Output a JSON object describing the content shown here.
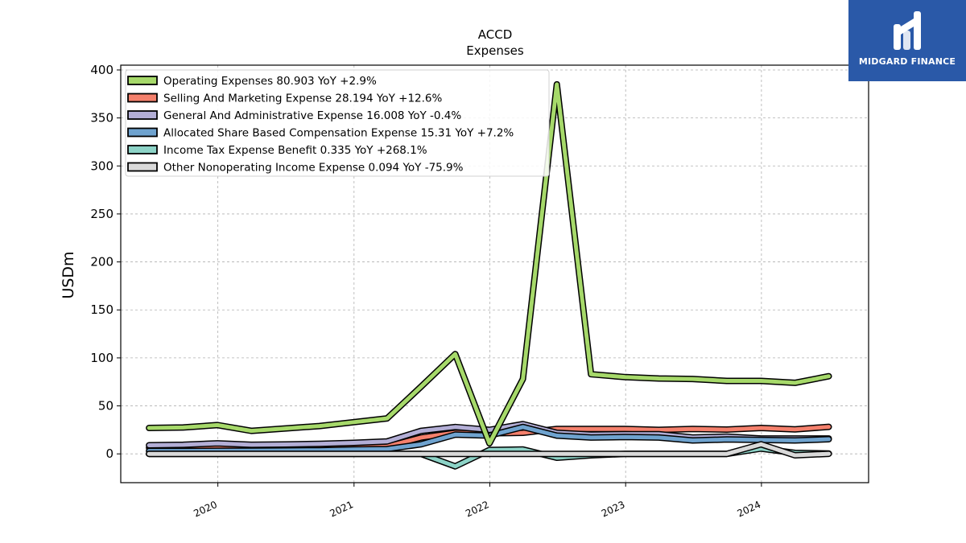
{
  "brand": {
    "name": "MIDGARD FINANCE",
    "bg_color": "#2a59a8"
  },
  "chart_data": {
    "type": "line",
    "title": "ACCD",
    "subtitle": "Expenses",
    "ylabel": "USDm",
    "xlabel": "",
    "ylim": [
      -30,
      405
    ],
    "xlim": [
      "2019-04-15",
      "2024-10-15"
    ],
    "yticks": [
      0,
      50,
      100,
      150,
      200,
      250,
      300,
      350,
      400
    ],
    "xticks": [
      "2020-01-01",
      "2021-01-01",
      "2022-01-01",
      "2023-01-01",
      "2024-01-01"
    ],
    "xtick_labels": [
      "2020",
      "2021",
      "2022",
      "2023",
      "2024"
    ],
    "grid": true,
    "legend_position": "top-left",
    "series": [
      {
        "name": "Selling And Marketing Expense",
        "legend": "Selling And Marketing Expense  28.194 YoY +12.6%",
        "color": "#f4806c",
        "points": [
          [
            "2019-06-30",
            6.5
          ],
          [
            "2019-09-30",
            6.8
          ],
          [
            "2019-12-31",
            7.1
          ],
          [
            "2020-03-31",
            6.9
          ],
          [
            "2020-06-30",
            7
          ],
          [
            "2020-09-30",
            7.2
          ],
          [
            "2020-12-31",
            7.4
          ],
          [
            "2021-03-31",
            7.6
          ],
          [
            "2021-06-30",
            17
          ],
          [
            "2021-09-30",
            22
          ],
          [
            "2021-12-31",
            21.5
          ],
          [
            "2022-03-31",
            22
          ],
          [
            "2022-06-30",
            26
          ],
          [
            "2022-09-30",
            26
          ],
          [
            "2022-12-31",
            26
          ],
          [
            "2023-03-31",
            25
          ],
          [
            "2023-06-30",
            26
          ],
          [
            "2023-09-30",
            25.3
          ],
          [
            "2023-12-31",
            27
          ],
          [
            "2024-03-31",
            25.5
          ],
          [
            "2024-06-30",
            28.2
          ]
        ]
      },
      {
        "name": "General And Administrative Expense",
        "legend": "General And Administrative Expense  16.008 YoY -0.4%",
        "color": "#b3aed6",
        "points": [
          [
            "2019-06-30",
            9
          ],
          [
            "2019-09-30",
            9.5
          ],
          [
            "2019-12-31",
            11
          ],
          [
            "2020-03-31",
            9.5
          ],
          [
            "2020-06-30",
            9.8
          ],
          [
            "2020-09-30",
            10.5
          ],
          [
            "2020-12-31",
            11.5
          ],
          [
            "2021-03-31",
            13
          ],
          [
            "2021-06-30",
            24
          ],
          [
            "2021-09-30",
            28
          ],
          [
            "2021-12-31",
            25
          ],
          [
            "2022-03-31",
            31
          ],
          [
            "2022-06-30",
            22
          ],
          [
            "2022-09-30",
            20
          ],
          [
            "2022-12-31",
            20.5
          ],
          [
            "2023-03-31",
            20.5
          ],
          [
            "2023-06-30",
            17
          ],
          [
            "2023-09-30",
            18
          ],
          [
            "2023-12-31",
            16
          ],
          [
            "2024-03-31",
            16
          ],
          [
            "2024-06-30",
            16
          ]
        ]
      },
      {
        "name": "Allocated Share Based Compensation Expense",
        "legend": "Allocated Share Based Compensation Expense  15.31 YoY +7.2%",
        "color": "#6fa3cf",
        "points": [
          [
            "2019-06-30",
            3
          ],
          [
            "2019-09-30",
            3
          ],
          [
            "2019-12-31",
            3.2
          ],
          [
            "2020-03-31",
            3.3
          ],
          [
            "2020-06-30",
            3.5
          ],
          [
            "2020-09-30",
            3.8
          ],
          [
            "2020-12-31",
            4.5
          ],
          [
            "2021-03-31",
            5
          ],
          [
            "2021-06-30",
            10
          ],
          [
            "2021-09-30",
            20
          ],
          [
            "2021-12-31",
            19
          ],
          [
            "2022-03-31",
            28
          ],
          [
            "2022-06-30",
            19
          ],
          [
            "2022-09-30",
            17
          ],
          [
            "2022-12-31",
            17.5
          ],
          [
            "2023-03-31",
            17
          ],
          [
            "2023-06-30",
            14
          ],
          [
            "2023-09-30",
            15
          ],
          [
            "2023-12-31",
            14.5
          ],
          [
            "2024-03-31",
            14
          ],
          [
            "2024-06-30",
            15.3
          ]
        ]
      },
      {
        "name": "Income Tax Expense Benefit",
        "legend": "Income Tax Expense Benefit  0.335 YoY +268.1%",
        "color": "#8dd3c7",
        "points": [
          [
            "2019-06-30",
            0
          ],
          [
            "2019-09-30",
            0
          ],
          [
            "2019-12-31",
            0
          ],
          [
            "2020-03-31",
            0
          ],
          [
            "2020-06-30",
            0
          ],
          [
            "2020-09-30",
            0
          ],
          [
            "2020-12-31",
            0
          ],
          [
            "2021-03-31",
            0
          ],
          [
            "2021-06-30",
            0
          ],
          [
            "2021-09-30",
            -13
          ],
          [
            "2021-12-31",
            4
          ],
          [
            "2022-03-31",
            4.5
          ],
          [
            "2022-06-30",
            -4
          ],
          [
            "2022-09-30",
            -1.5
          ],
          [
            "2022-12-31",
            0
          ],
          [
            "2023-03-31",
            0
          ],
          [
            "2023-06-30",
            0
          ],
          [
            "2023-09-30",
            0
          ],
          [
            "2023-12-31",
            5.5
          ],
          [
            "2024-03-31",
            1
          ],
          [
            "2024-06-30",
            0.3
          ]
        ]
      },
      {
        "name": "Other Nonoperating Income Expense",
        "legend": "Other Nonoperating Income Expense  0.094 YoY -75.9%",
        "color": "#d9d9d9",
        "points": [
          [
            "2019-06-30",
            0
          ],
          [
            "2019-09-30",
            0
          ],
          [
            "2019-12-31",
            0
          ],
          [
            "2020-03-31",
            0
          ],
          [
            "2020-06-30",
            0
          ],
          [
            "2020-09-30",
            0
          ],
          [
            "2020-12-31",
            0
          ],
          [
            "2021-03-31",
            0
          ],
          [
            "2021-06-30",
            0
          ],
          [
            "2021-09-30",
            0
          ],
          [
            "2021-12-31",
            0
          ],
          [
            "2022-03-31",
            0
          ],
          [
            "2022-06-30",
            0
          ],
          [
            "2022-09-30",
            0
          ],
          [
            "2022-12-31",
            0
          ],
          [
            "2023-03-31",
            0
          ],
          [
            "2023-06-30",
            0
          ],
          [
            "2023-09-30",
            0
          ],
          [
            "2023-12-31",
            10
          ],
          [
            "2024-03-31",
            -1.5
          ],
          [
            "2024-06-30",
            0.1
          ]
        ]
      },
      {
        "name": "Operating Expenses",
        "legend": "Operating Expenses  80.903 YoY +2.9%",
        "color": "#a6d96a",
        "points": [
          [
            "2019-06-30",
            27
          ],
          [
            "2019-09-30",
            27.5
          ],
          [
            "2019-12-31",
            30
          ],
          [
            "2020-03-31",
            24
          ],
          [
            "2020-06-30",
            26.5
          ],
          [
            "2020-09-30",
            29
          ],
          [
            "2020-12-31",
            33
          ],
          [
            "2021-03-31",
            37
          ],
          [
            "2021-06-30",
            70
          ],
          [
            "2021-09-30",
            104
          ],
          [
            "2021-12-31",
            11
          ],
          [
            "2022-03-31",
            78
          ],
          [
            "2022-06-30",
            385
          ],
          [
            "2022-09-30",
            83
          ],
          [
            "2022-12-31",
            80
          ],
          [
            "2023-03-31",
            78.5
          ],
          [
            "2023-06-30",
            78
          ],
          [
            "2023-09-30",
            76
          ],
          [
            "2023-12-31",
            76
          ],
          [
            "2024-03-31",
            74
          ],
          [
            "2024-06-30",
            80.9
          ]
        ]
      }
    ],
    "legend_order": [
      "Operating Expenses",
      "Selling And Marketing Expense",
      "General And Administrative Expense",
      "Allocated Share Based Compensation Expense",
      "Income Tax Expense Benefit",
      "Other Nonoperating Income Expense"
    ]
  }
}
